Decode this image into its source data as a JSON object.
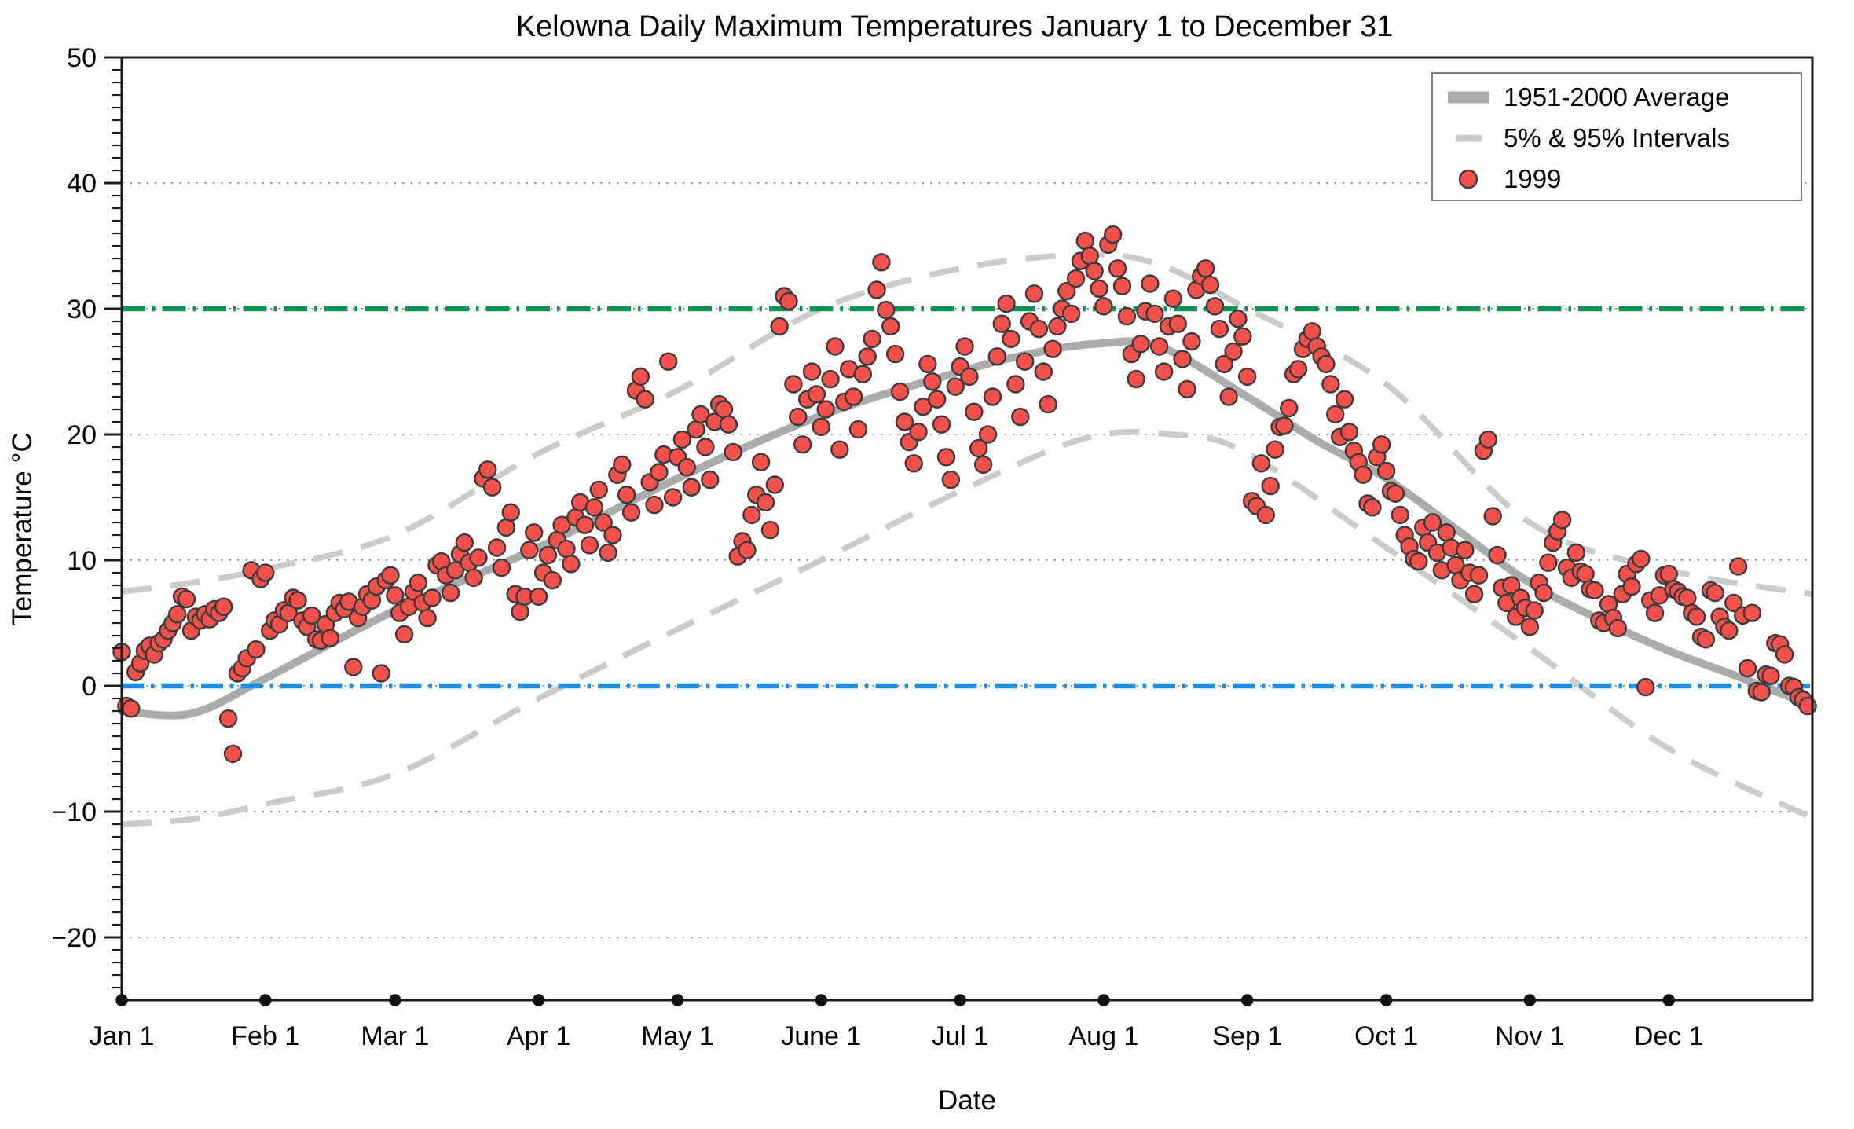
{
  "chart_data": {
    "type": "scatter",
    "title": "Kelowna Daily Maximum Temperatures January 1 to December 31",
    "xlabel": "Date",
    "ylabel": "Temperature °C",
    "ylim": [
      -25,
      50
    ],
    "xlim_days": [
      0,
      365
    ],
    "grid": "dotted horizontal at each 10 °C major",
    "legend_position": "top-right",
    "y_ticks": [
      {
        "value": 50,
        "label": "50"
      },
      {
        "value": 40,
        "label": "40"
      },
      {
        "value": 30,
        "label": "30"
      },
      {
        "value": 20,
        "label": "20"
      },
      {
        "value": 10,
        "label": "10"
      },
      {
        "value": 0,
        "label": "0"
      },
      {
        "value": -10,
        "label": "−10"
      },
      {
        "value": -20,
        "label": "−20"
      }
    ],
    "y_minor_tick_step": 1,
    "x_ticks": [
      {
        "day": 0,
        "label": "Jan 1"
      },
      {
        "day": 31,
        "label": "Feb 1"
      },
      {
        "day": 59,
        "label": "Mar 1"
      },
      {
        "day": 90,
        "label": "Apr 1"
      },
      {
        "day": 120,
        "label": "May 1"
      },
      {
        "day": 151,
        "label": "June 1"
      },
      {
        "day": 181,
        "label": "Jul 1"
      },
      {
        "day": 212,
        "label": "Aug 1"
      },
      {
        "day": 243,
        "label": "Sep 1"
      },
      {
        "day": 273,
        "label": "Oct 1"
      },
      {
        "day": 304,
        "label": "Nov 1"
      },
      {
        "day": 334,
        "label": "Dec 1"
      }
    ],
    "legend": [
      {
        "label": "1951-2000 Average",
        "swatch": "thick-gray-line"
      },
      {
        "label": "5% & 95% Intervals",
        "swatch": "gray-dash"
      },
      {
        "label": "1999",
        "swatch": "red-dot"
      }
    ],
    "reference_lines": [
      {
        "name": "30C-threshold",
        "value": 30,
        "style": "dashed",
        "color": "#0e9153"
      },
      {
        "name": "0C-freezing",
        "value": 0,
        "style": "dash-dot",
        "color": "#1d8fe8"
      }
    ],
    "colors": {
      "scatter_fill": "#f4514d",
      "scatter_stroke": "#3b3b3b",
      "average_line": "#ababab",
      "interval_line": "#cbcbcb",
      "green_line": "#0e9153",
      "blue_line": "#1d8fe8",
      "gridline": "#999999",
      "axis": "#1a1a1a",
      "legend_border": "#808080",
      "background": "#ffffff"
    },
    "series": {
      "average_1951_2000": {
        "name": "1951-2000 Average",
        "points_day_temp": [
          [
            0,
            -2.0
          ],
          [
            15,
            -2.2
          ],
          [
            31,
            0.6
          ],
          [
            59,
            6.0
          ],
          [
            90,
            11.0
          ],
          [
            120,
            16.5
          ],
          [
            151,
            21.5
          ],
          [
            181,
            25.0
          ],
          [
            196,
            26.4
          ],
          [
            210,
            27.2
          ],
          [
            224,
            27.0
          ],
          [
            243,
            23.0
          ],
          [
            258,
            19.5
          ],
          [
            273,
            16.5
          ],
          [
            288,
            12.5
          ],
          [
            304,
            8.2
          ],
          [
            319,
            5.3
          ],
          [
            334,
            2.8
          ],
          [
            350,
            0.6
          ],
          [
            365,
            -1.6
          ]
        ]
      },
      "interval_95pct": {
        "name": "95% Interval",
        "points_day_temp": [
          [
            0,
            7.5
          ],
          [
            15,
            8.2
          ],
          [
            31,
            9.3
          ],
          [
            59,
            12.0
          ],
          [
            90,
            18.5
          ],
          [
            120,
            23.5
          ],
          [
            151,
            30.0
          ],
          [
            181,
            33.2
          ],
          [
            208,
            34.3
          ],
          [
            224,
            33.5
          ],
          [
            243,
            30.0
          ],
          [
            273,
            24.0
          ],
          [
            304,
            13.0
          ],
          [
            334,
            9.2
          ],
          [
            365,
            7.3
          ]
        ]
      },
      "interval_5pct": {
        "name": "5% Interval",
        "points_day_temp": [
          [
            0,
            -11.0
          ],
          [
            15,
            -10.6
          ],
          [
            31,
            -9.4
          ],
          [
            59,
            -7.0
          ],
          [
            90,
            -1.0
          ],
          [
            120,
            4.5
          ],
          [
            151,
            10.0
          ],
          [
            181,
            15.5
          ],
          [
            208,
            19.7
          ],
          [
            227,
            20.0
          ],
          [
            243,
            18.5
          ],
          [
            273,
            11.0
          ],
          [
            304,
            3.0
          ],
          [
            334,
            -5.0
          ],
          [
            365,
            -10.5
          ]
        ]
      },
      "scatter_1999": {
        "name": "1999",
        "note": "daily maximum temperature, one value per day Jan 1 - Dec 31 (estimated from plot)",
        "values": [
          2.7,
          -1.6,
          -1.8,
          1.1,
          1.8,
          2.8,
          3.2,
          2.5,
          3.4,
          3.7,
          4.4,
          5.0,
          5.7,
          7.1,
          6.9,
          4.4,
          5.5,
          5.2,
          5.7,
          5.3,
          6.1,
          5.8,
          6.3,
          -2.6,
          -5.4,
          1.0,
          1.4,
          2.2,
          9.2,
          2.9,
          8.5,
          9.0,
          4.4,
          5.2,
          4.9,
          6.0,
          5.8,
          7.0,
          6.8,
          5.2,
          4.7,
          5.6,
          3.7,
          3.6,
          4.9,
          3.8,
          5.8,
          6.6,
          6.1,
          6.7,
          1.5,
          5.4,
          6.3,
          7.3,
          6.8,
          7.9,
          1.0,
          8.4,
          8.8,
          7.2,
          5.8,
          4.1,
          6.3,
          7.5,
          8.2,
          6.6,
          5.4,
          7.0,
          9.6,
          9.9,
          8.8,
          7.4,
          9.2,
          10.5,
          11.4,
          9.8,
          8.6,
          10.2,
          16.5,
          17.2,
          15.8,
          11.0,
          9.4,
          12.6,
          13.8,
          7.3,
          5.9,
          7.1,
          10.8,
          12.2,
          7.1,
          9.0,
          10.4,
          8.4,
          11.6,
          12.8,
          10.9,
          9.7,
          13.4,
          14.6,
          12.8,
          11.2,
          14.2,
          15.6,
          13.0,
          10.6,
          12.0,
          16.8,
          17.6,
          15.2,
          13.8,
          23.5,
          24.6,
          22.8,
          16.2,
          14.4,
          17.0,
          18.4,
          25.8,
          15.0,
          18.2,
          19.6,
          17.4,
          15.8,
          20.4,
          21.6,
          19.0,
          16.4,
          21.0,
          22.4,
          22.0,
          20.8,
          18.6,
          10.3,
          11.5,
          10.8,
          13.6,
          15.2,
          17.8,
          14.6,
          12.4,
          16.0,
          28.6,
          31.0,
          30.6,
          24.0,
          21.4,
          19.2,
          22.8,
          25.0,
          23.2,
          20.6,
          22.0,
          24.4,
          27.0,
          18.8,
          22.6,
          25.2,
          23.0,
          20.4,
          24.8,
          26.2,
          27.6,
          31.5,
          33.7,
          29.9,
          28.6,
          26.4,
          23.4,
          21.0,
          19.4,
          17.7,
          20.2,
          22.2,
          25.6,
          24.2,
          22.8,
          20.8,
          18.2,
          16.4,
          23.8,
          25.4,
          27.0,
          24.6,
          21.8,
          18.9,
          17.6,
          20.0,
          23.0,
          26.2,
          28.8,
          30.4,
          27.6,
          24.0,
          21.4,
          25.8,
          29.0,
          31.2,
          28.4,
          25.0,
          22.4,
          26.8,
          28.6,
          30.0,
          31.4,
          29.6,
          32.4,
          33.8,
          35.4,
          34.2,
          33.0,
          31.6,
          30.2,
          35.1,
          35.9,
          33.2,
          31.8,
          29.4,
          26.4,
          24.4,
          27.2,
          29.8,
          32.0,
          29.6,
          27.0,
          25.0,
          28.6,
          30.8,
          28.8,
          26.0,
          23.6,
          27.4,
          31.5,
          32.6,
          33.2,
          31.9,
          30.2,
          28.4,
          25.6,
          23.0,
          26.6,
          29.2,
          27.8,
          24.6,
          14.7,
          14.3,
          17.7,
          13.6,
          15.9,
          18.8,
          20.6,
          20.7,
          22.1,
          24.8,
          25.2,
          26.8,
          27.6,
          28.2,
          27.0,
          26.2,
          25.6,
          24.0,
          21.6,
          19.8,
          22.8,
          20.2,
          18.7,
          17.8,
          16.8,
          14.5,
          14.2,
          18.2,
          19.2,
          17.1,
          15.5,
          15.3,
          13.6,
          12.0,
          11.1,
          10.1,
          9.9,
          12.6,
          11.4,
          13.0,
          10.6,
          9.2,
          12.2,
          11.0,
          9.6,
          8.4,
          10.8,
          9.0,
          7.3,
          8.8,
          18.7,
          19.6,
          13.5,
          10.4,
          7.8,
          6.6,
          8.0,
          5.5,
          7.0,
          6.2,
          4.7,
          6.0,
          8.2,
          7.4,
          9.8,
          11.4,
          12.3,
          13.2,
          9.4,
          8.6,
          10.6,
          9.1,
          8.9,
          7.7,
          7.6,
          5.2,
          5.0,
          6.5,
          5.4,
          4.6,
          7.3,
          8.9,
          7.9,
          9.7,
          10.1,
          -0.1,
          6.8,
          5.8,
          7.2,
          8.8,
          8.9,
          7.7,
          7.5,
          7.1,
          7.0,
          5.8,
          5.5,
          3.9,
          3.7,
          7.6,
          7.4,
          5.5,
          4.7,
          4.4,
          6.6,
          9.5,
          5.6,
          1.4,
          5.8,
          -0.4,
          -0.5,
          0.9,
          0.8,
          3.4,
          3.3,
          2.5,
          0.0,
          -0.1,
          -0.9,
          -1.1,
          -1.6
        ]
      }
    }
  }
}
